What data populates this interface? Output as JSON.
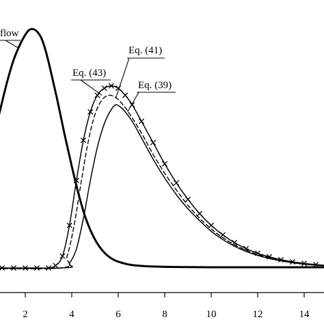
{
  "chart_data": {
    "type": "line",
    "xlim": [
      -1,
      15
    ],
    "ylim": [
      0,
      1
    ],
    "x_ticks": [
      2,
      4,
      6,
      8,
      10,
      12,
      14
    ],
    "x_tick_labels": [
      "2",
      "4",
      "6",
      "8",
      "10",
      "12",
      "14"
    ],
    "y_ticks": [],
    "grid": false,
    "legend": "none",
    "series": [
      {
        "name": "inflow",
        "style": "thick-solid",
        "x": [
          0.0,
          0.3,
          0.6,
          0.9,
          1.2,
          1.5,
          1.8,
          2.1,
          2.3,
          2.5,
          2.7,
          2.9,
          3.1,
          3.4,
          3.7,
          4.0,
          4.3,
          4.6,
          5.0,
          5.4,
          5.8,
          6.3,
          6.8,
          7.5,
          8.5,
          10.0,
          12.0,
          15.0
        ],
        "y": [
          0.32,
          0.42,
          0.54,
          0.66,
          0.78,
          0.88,
          0.95,
          1.0,
          1.01,
          1.0,
          0.97,
          0.91,
          0.83,
          0.7,
          0.56,
          0.43,
          0.31,
          0.21,
          0.12,
          0.065,
          0.035,
          0.018,
          0.01,
          0.006,
          0.004,
          0.003,
          0.003,
          0.003
        ]
      },
      {
        "name": "Eq. (39)",
        "style": "solid",
        "x": [
          -1.0,
          3.6,
          3.9,
          4.2,
          4.5,
          4.8,
          5.1,
          5.4,
          5.7,
          5.9,
          6.1,
          6.3,
          6.6,
          7.0,
          7.5,
          8.0,
          8.5,
          9.0,
          9.5,
          10.0,
          10.5,
          11.0,
          11.5,
          12.0,
          12.5,
          13.0,
          13.5,
          14.0,
          14.5,
          15.0
        ],
        "y": [
          0.0,
          0.0,
          0.02,
          0.08,
          0.21,
          0.37,
          0.51,
          0.61,
          0.67,
          0.69,
          0.68,
          0.66,
          0.62,
          0.55,
          0.46,
          0.38,
          0.31,
          0.25,
          0.2,
          0.155,
          0.12,
          0.092,
          0.07,
          0.053,
          0.04,
          0.03,
          0.022,
          0.016,
          0.012,
          0.009
        ]
      },
      {
        "name": "Eq. (41)",
        "style": "dashed",
        "x": [
          -1.0,
          3.5,
          3.8,
          4.1,
          4.4,
          4.7,
          5.0,
          5.3,
          5.6,
          5.9,
          6.2,
          6.5,
          7.0,
          7.5,
          8.0,
          8.5,
          9.0,
          9.5,
          10.0,
          10.5,
          11.0,
          11.5,
          12.0,
          12.5,
          13.0,
          13.5,
          14.0,
          14.5,
          15.0
        ],
        "y": [
          0.0,
          0.0,
          0.05,
          0.18,
          0.36,
          0.53,
          0.65,
          0.71,
          0.73,
          0.72,
          0.69,
          0.65,
          0.57,
          0.48,
          0.4,
          0.33,
          0.265,
          0.21,
          0.165,
          0.128,
          0.098,
          0.075,
          0.057,
          0.043,
          0.032,
          0.024,
          0.018,
          0.013,
          0.01
        ]
      },
      {
        "name": "Eq. (43)",
        "style": "crosses",
        "x": [
          -1.0,
          -0.5,
          0.0,
          0.5,
          1.0,
          1.5,
          2.0,
          2.5,
          3.0,
          3.3,
          3.6,
          3.9,
          4.2,
          4.5,
          4.8,
          5.1,
          5.4,
          5.7,
          6.0,
          6.3,
          6.6,
          7.0,
          7.5,
          8.0,
          8.5,
          9.0,
          9.5,
          10.0,
          10.5,
          11.0,
          11.5,
          12.0,
          12.5,
          13.0,
          13.5,
          14.0,
          14.5,
          15.0
        ],
        "y": [
          0.0,
          0.0,
          0.0,
          0.0,
          0.0,
          0.0,
          0.0,
          0.0,
          0.0,
          0.01,
          0.05,
          0.18,
          0.37,
          0.54,
          0.66,
          0.73,
          0.76,
          0.77,
          0.76,
          0.73,
          0.69,
          0.62,
          0.53,
          0.44,
          0.36,
          0.29,
          0.23,
          0.18,
          0.14,
          0.107,
          0.082,
          0.062,
          0.047,
          0.035,
          0.026,
          0.019,
          0.014,
          0.01
        ]
      }
    ],
    "annotations": [
      {
        "text": "flow",
        "series": "inflow",
        "at_x": 1.7,
        "at_y": 0.93
      },
      {
        "text": "Eq. (41)",
        "series": "Eq. (41)",
        "at_x": 5.9,
        "at_y": 0.72
      },
      {
        "text": "Eq. (43)",
        "series": "Eq. (43)",
        "at_x": 5.3,
        "at_y": 0.73
      },
      {
        "text": "Eq. (39)",
        "series": "Eq. (39)",
        "at_x": 6.4,
        "at_y": 0.66
      }
    ]
  }
}
